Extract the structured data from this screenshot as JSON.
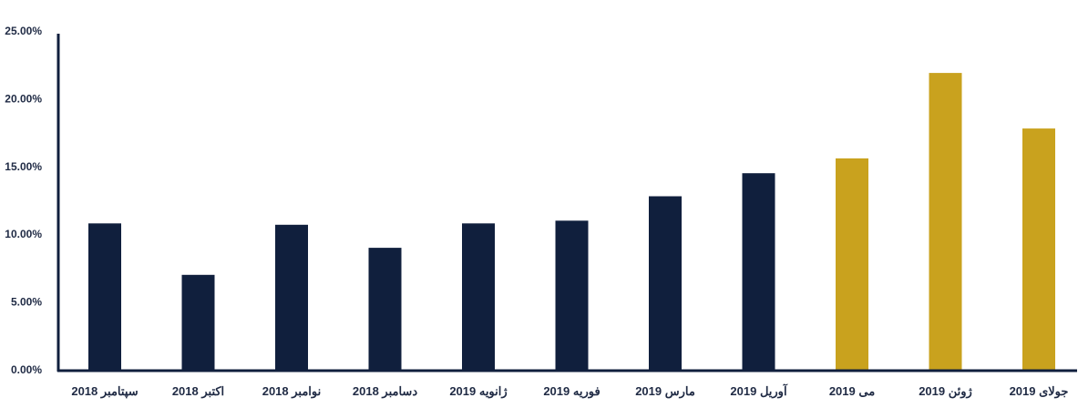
{
  "chart_data": {
    "type": "bar",
    "title": "",
    "xlabel": "",
    "ylabel": "",
    "ylim": [
      0,
      25
    ],
    "y_ticks": [
      0,
      5,
      10,
      15,
      20,
      25
    ],
    "y_tick_labels": [
      "0.00%",
      "5.00%",
      "10.00%",
      "15.00%",
      "20.00%",
      "25.00%"
    ],
    "grid": false,
    "legend": "none",
    "categories": [
      "سپتامبر 2018",
      "اکتبر 2018",
      "نوامبر 2018",
      "دسامبر 2018",
      "ژانویه 2019",
      "فوریه 2019",
      "مارس 2019",
      "آوریل 2019",
      "می 2019",
      "ژوئن 2019",
      "جولای 2019"
    ],
    "values": [
      10.8,
      7.0,
      10.7,
      9.0,
      10.8,
      11.0,
      12.8,
      14.5,
      15.6,
      21.9,
      17.8
    ],
    "colors": [
      "#101f3d",
      "#101f3d",
      "#101f3d",
      "#101f3d",
      "#101f3d",
      "#101f3d",
      "#101f3d",
      "#101f3d",
      "#c9a21e",
      "#c9a21e",
      "#c9a21e"
    ],
    "axis_color": "#101f3d"
  }
}
